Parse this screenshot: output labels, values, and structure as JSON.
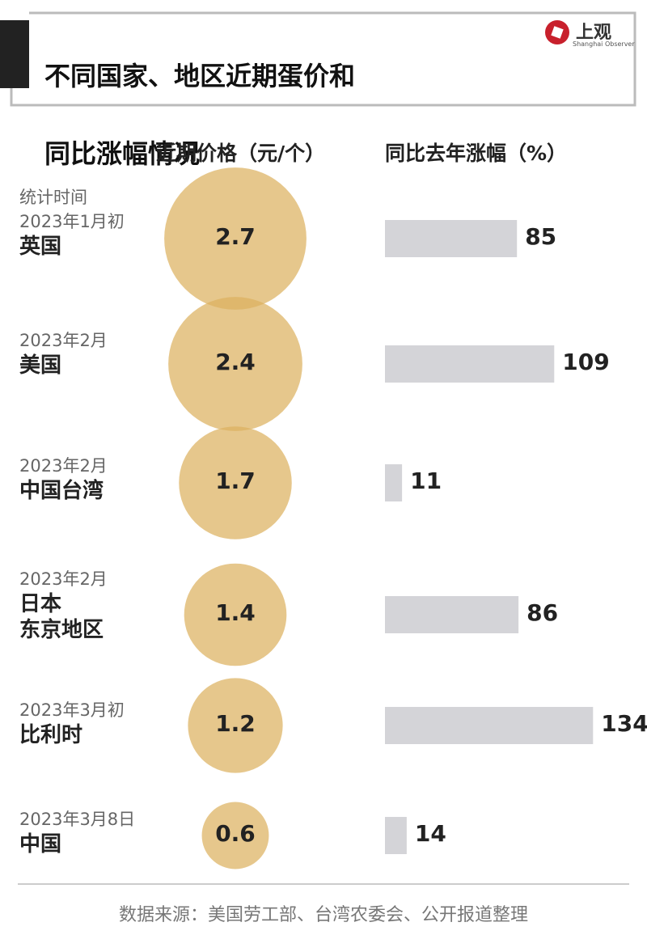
{
  "header": {
    "logo": "上观",
    "logo_sub": "Shanghai Observer"
  },
  "chart_data": {
    "type": "bubble_bar",
    "title": [
      "不同国家、地区近期蛋价和",
      "同比涨幅情况"
    ],
    "note": "统计时间",
    "dates": [
      "2023年1月初",
      "2023年2月",
      "2023年2月",
      "2023年2月",
      "2023年3月初",
      "2023年3月8日"
    ],
    "categories": [
      "英国",
      "美国",
      "中国台湾",
      "日本\n东京地区",
      "比利时",
      "中国"
    ],
    "series": [
      {
        "name": "近期价格（元/个）",
        "color": "#dcb260",
        "values": [
          2.7,
          2.4,
          1.7,
          1.4,
          1.2,
          0.6
        ]
      },
      {
        "name": "同比去年涨幅（%）",
        "color": "#d4d4d8",
        "values": [
          85,
          109,
          11,
          86,
          134,
          14
        ]
      }
    ],
    "source": "数据来源：美国劳工部、台湾农委会、公开报道整理"
  }
}
